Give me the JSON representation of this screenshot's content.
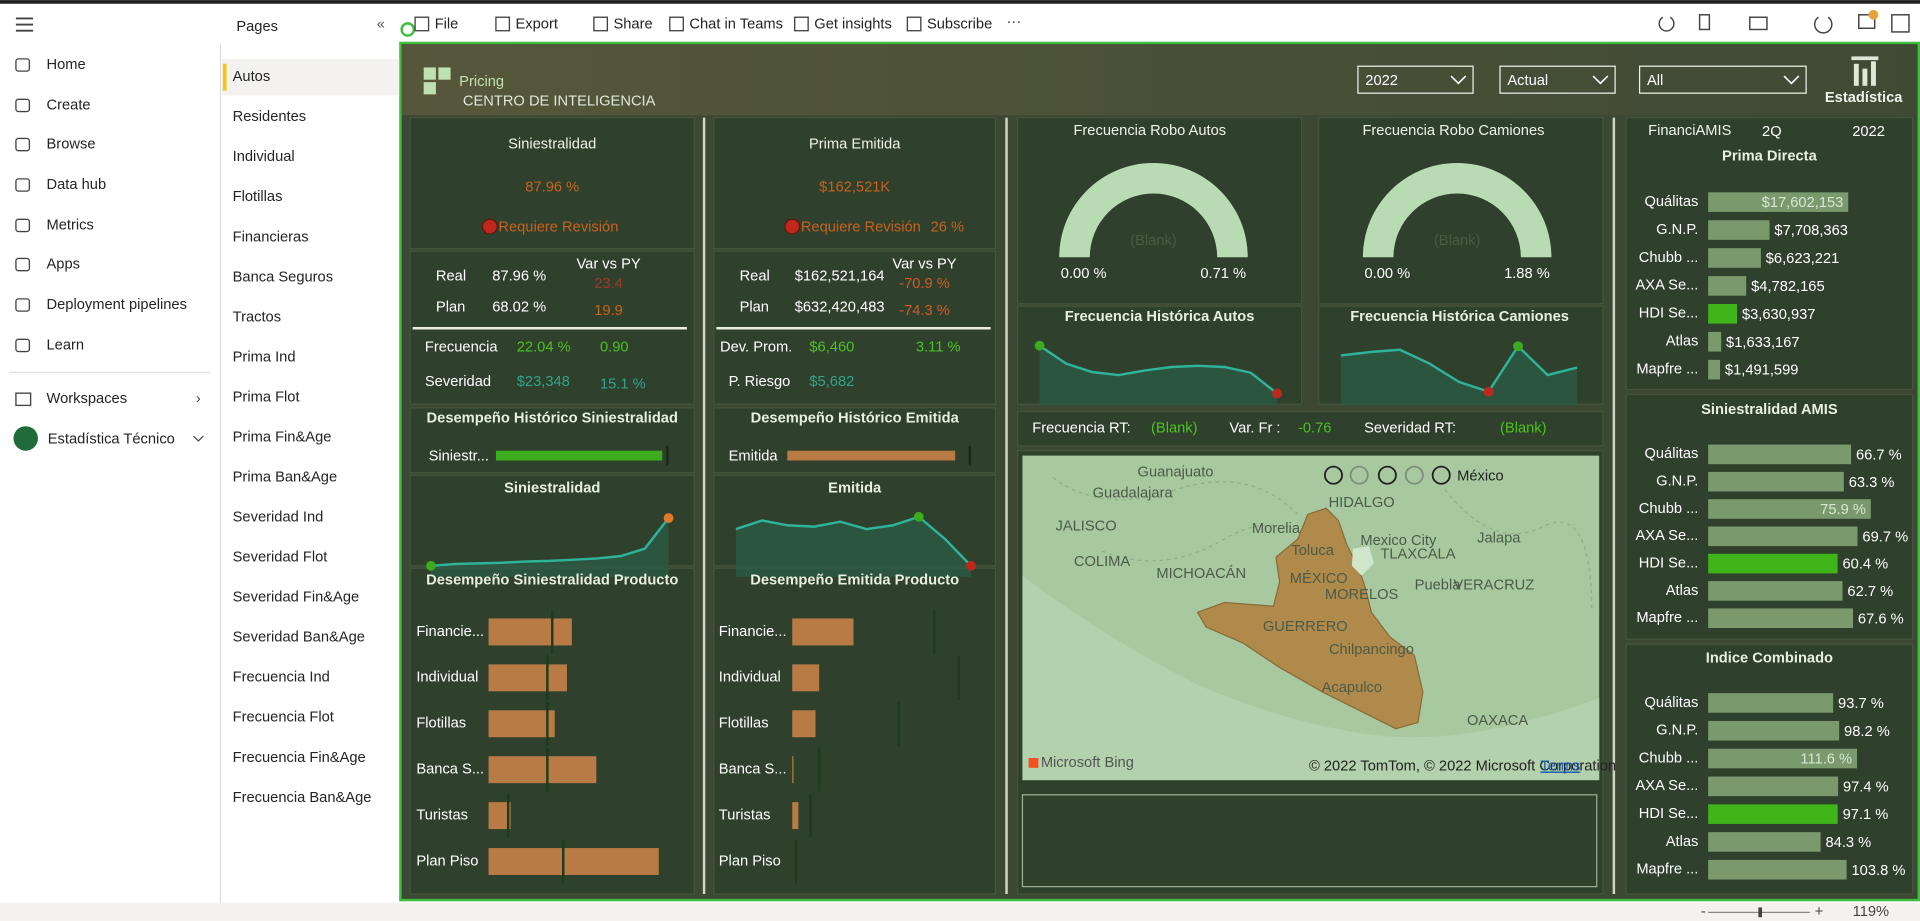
{
  "toolbar": {
    "items": [
      "File",
      "Export",
      "Share",
      "Chat in Teams",
      "Get insights",
      "Subscribe"
    ]
  },
  "nav": {
    "items": [
      "Home",
      "Create",
      "Browse",
      "Data hub",
      "Metrics",
      "Apps",
      "Deployment pipelines",
      "Learn"
    ],
    "workspaces": "Workspaces",
    "workspace": "Estadística Técnico"
  },
  "pages": {
    "title": "Pages",
    "items": [
      "Autos",
      "Residentes",
      "Individual",
      "Flotillas",
      "Financieras",
      "Banca Seguros",
      "Tractos",
      "Prima Ind",
      "Prima Flot",
      "Prima Fin&Age",
      "Prima Ban&Age",
      "Severidad Ind",
      "Severidad Flot",
      "Severidad Fin&Age",
      "Severidad Ban&Age",
      "Frecuencia Ind",
      "Frecuencia Flot",
      "Frecuencia Fin&Age",
      "Frecuencia Ban&Age"
    ],
    "selected": 0
  },
  "report": {
    "logo": "Pricing",
    "logo_sub": "CENTRO DE INTELIGENCIA",
    "filters": [
      "2022",
      "Actual",
      "All"
    ],
    "brand": "Estadística",
    "siniestralidad": {
      "title": "Siniestralidad",
      "value": "87.96 %",
      "status": "Requiere Revisión",
      "var_header": "Var vs PY",
      "rows": [
        [
          "Real",
          "87.96 %",
          "23.4"
        ],
        [
          "Plan",
          "68.02 %",
          "19.9"
        ]
      ],
      "metrics": [
        [
          "Frecuencia",
          "22.04 %",
          "0.90"
        ],
        [
          "Severidad",
          "$23,348",
          "15.1 %"
        ]
      ]
    },
    "prima": {
      "title": "Prima Emitida",
      "value": "$162,521K",
      "status": "Requiere Revisión",
      "status_value": "26 %",
      "var_header": "Var vs PY",
      "rows": [
        [
          "Real",
          "$162,521,164",
          "-70.9 %"
        ],
        [
          "Plan",
          "$632,420,483",
          "-74.3 %"
        ]
      ],
      "metrics": [
        [
          "Dev. Prom.",
          "$6,460",
          "3.11 %"
        ],
        [
          "P. Riesgo",
          "$5,682"
        ]
      ]
    },
    "hist_sin": {
      "title": "Desempeño Histórico Siniestralidad",
      "label": "Siniestr...",
      "value": 97,
      "xlim": [
        0,
        100
      ]
    },
    "hist_emi": {
      "title": "Desempeño Histórico Emitida",
      "label": "Emitida",
      "value": 92,
      "xlim": [
        0,
        100
      ]
    },
    "trend_sin": {
      "title": "Siniestralidad",
      "values": [
        6,
        9,
        10,
        11,
        13,
        14,
        16,
        18,
        22,
        34,
        84
      ],
      "ylim": [
        0,
        100
      ],
      "high_color": "#e07b2a",
      "low_color": "#3dab1e"
    },
    "trend_emi": {
      "title": "Emitida",
      "values": [
        66,
        80,
        72,
        70,
        78,
        66,
        72,
        86,
        50,
        6
      ],
      "ylim": [
        0,
        100
      ],
      "high_color": "#3dab1e",
      "low_color": "#c0281e"
    },
    "prod_sin": {
      "title": "Desempeño Siniestralidad Producto",
      "categories": [
        "Financie...",
        "Individual",
        "Flotillas",
        "Banca S...",
        "Turistas",
        "Plan Piso"
      ],
      "values": [
        68,
        64,
        54,
        88,
        18,
        139
      ],
      "targets": [
        52,
        48,
        48,
        48,
        16,
        61
      ],
      "xlim": [
        0,
        140
      ]
    },
    "prod_emi": {
      "title": "Desempeño Emitida Producto",
      "categories": [
        "Financie...",
        "Individual",
        "Flotillas",
        "Banca S...",
        "Turistas",
        "Plan Piso"
      ],
      "values": [
        50,
        22,
        19,
        1,
        5,
        0
      ],
      "targets": [
        116,
        136,
        87,
        22,
        15,
        3
      ],
      "xlim": [
        0,
        140
      ]
    },
    "robo_autos": {
      "title": "Frecuencia Robo Autos",
      "value": "(Blank)",
      "min": "0.00 %",
      "max": "0.71 %"
    },
    "robo_camiones": {
      "title": "Frecuencia Robo Camiones",
      "value": "(Blank)",
      "min": "0.00 %",
      "max": "1.88 %"
    },
    "hist_autos": {
      "title": "Frecuencia Histórica Autos",
      "values": [
        91,
        60,
        45,
        40,
        48,
        54,
        56,
        54,
        44,
        8
      ],
      "ylim": [
        0,
        100
      ],
      "high_color": "#3dab1e",
      "low_color": "#c0281e"
    },
    "hist_camiones": {
      "title": "Frecuencia Histórica Camiones",
      "values": [
        74,
        80,
        84,
        60,
        28,
        11,
        90,
        40,
        53
      ],
      "ylim": [
        0,
        100
      ],
      "high_color": "#3dab1e",
      "low_color": "#c0281e"
    },
    "rt": {
      "labels": [
        "Frecuencia RT:",
        "Var. Fr :",
        "Severidad RT:"
      ],
      "values": [
        "(Blank)",
        "-0.76",
        "(Blank)"
      ]
    },
    "map": {
      "play_label": "México",
      "labels": [
        "Guanajuato",
        "Guadalajara",
        "HIDALGO",
        "JALISCO",
        "Morelia",
        "Toluca",
        "Mexico City",
        "TLAXCALA",
        "Jalapa",
        "COLIMA",
        "MÉXICO",
        "MICHOACÁN",
        "MORELOS",
        "Puebla",
        "VERACRUZ",
        "GUERRERO",
        "Chilpancingo",
        "Acapulco",
        "OAXACA"
      ],
      "provider": "Microsoft Bing",
      "attribution": "© 2022 TomTom, © 2022 Microsoft Corporation",
      "terms": "Terms"
    },
    "amis": {
      "title": "FinanciAMIS",
      "quarter": "2Q",
      "year": "2022",
      "highlight": 4,
      "charts": [
        {
          "title": "Prima Directa",
          "categories": [
            "Quálitas",
            "G.N.P.",
            "Chubb ...",
            "AXA Se...",
            "HDI Se...",
            "Atlas",
            "Mapfre ..."
          ],
          "values": [
            17602153,
            7708363,
            6623221,
            4782165,
            3630937,
            1633167,
            1491599
          ],
          "value_labels": [
            "$17,602,153",
            "$7,708,363",
            "$6,623,221",
            "$4,782,165",
            "$3,630,937",
            "$1,633,167",
            "$1,491,599"
          ],
          "xlim": [
            0,
            18000000
          ]
        },
        {
          "title": "Siniestralidad AMIS",
          "categories": [
            "Quálitas",
            "G.N.P.",
            "Chubb ...",
            "AXA Se...",
            "HDI Se...",
            "Atlas",
            "Mapfre ..."
          ],
          "values": [
            66.7,
            63.3,
            75.9,
            69.7,
            60.4,
            62.7,
            67.6
          ],
          "value_labels": [
            "66.7 %",
            "63.3 %",
            "75.9 %",
            "69.7 %",
            "60.4 %",
            "62.7 %",
            "67.6 %"
          ],
          "xlim": [
            0,
            76
          ]
        },
        {
          "title": "Indice Combinado",
          "categories": [
            "Quálitas",
            "G.N.P.",
            "Chubb ...",
            "AXA Se...",
            "HDI Se...",
            "Atlas",
            "Mapfre ..."
          ],
          "values": [
            93.7,
            98.2,
            111.6,
            97.4,
            97.1,
            84.3,
            103.8
          ],
          "value_labels": [
            "93.7 %",
            "98.2 %",
            "111.6 %",
            "97.4 %",
            "97.1 %",
            "84.3 %",
            "103.8 %"
          ],
          "xlim": [
            0,
            112
          ]
        }
      ]
    }
  },
  "footer": {
    "zoom": "119%"
  }
}
